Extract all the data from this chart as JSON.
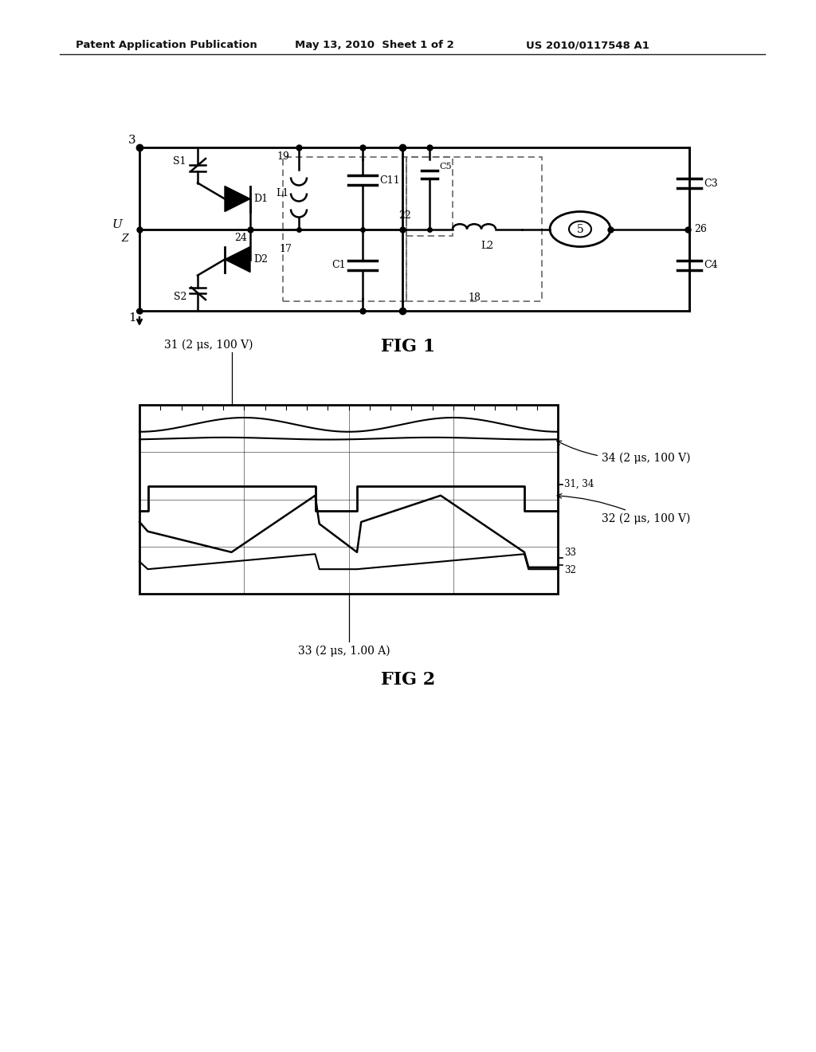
{
  "header_left": "Patent Application Publication",
  "header_mid": "May 13, 2010  Sheet 1 of 2",
  "header_right": "US 2010/0117548 A1",
  "fig1_label": "FIG 1",
  "fig2_label": "FIG 2",
  "fig2_annotation_31": "31 (2 μs, 100 V)",
  "fig2_annotation_34": "34 (2 μs, 100 V)",
  "fig2_annotation_32": "32 (2 μs, 100 V)",
  "fig2_annotation_33": "33 (2 μs, 1.00 A)",
  "background_color": "#ffffff"
}
